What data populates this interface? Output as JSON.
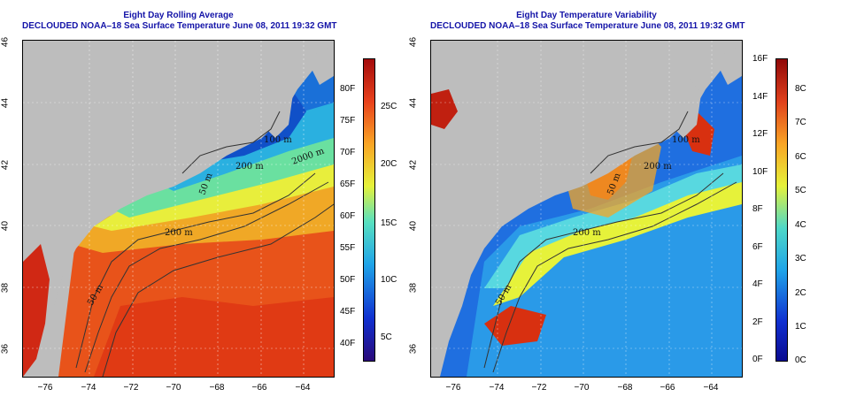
{
  "left_panel": {
    "title_line1": "Eight Day Rolling Average",
    "title_line2": "DECLOUDED NOAA–18 Sea Surface Temperature June 08, 2011 19:32 GMT",
    "colorbar_fahrenheit": [
      "80F",
      "75F",
      "70F",
      "65F",
      "60F",
      "55F",
      "50F",
      "45F",
      "40F"
    ],
    "colorbar_celsius": [
      "25C",
      "20C",
      "15C",
      "10C",
      "5C"
    ],
    "colors": [
      "#2a0a7a",
      "#1030d0",
      "#1fa4e8",
      "#58e0c0",
      "#e6f23a",
      "#f9a425",
      "#e8411c",
      "#a40c0c"
    ]
  },
  "right_panel": {
    "title_line1": "Eight Day Temperature Variability",
    "title_line2": "DECLOUDED NOAA–18 Sea Surface Temperature June 08, 2011 19:32 GMT",
    "colorbar_fahrenheit": [
      "16F",
      "14F",
      "12F",
      "10F",
      "8F",
      "6F",
      "4F",
      "2F",
      "0F"
    ],
    "colorbar_celsius": [
      "8C",
      "7C",
      "6C",
      "5C",
      "4C",
      "3C",
      "2C",
      "1C",
      "0C"
    ],
    "colors": [
      "#0a0a90",
      "#1030d0",
      "#1fa4e8",
      "#4ed8c8",
      "#e6f23a",
      "#f9a425",
      "#e0401c",
      "#900808"
    ]
  },
  "axes": {
    "latitude_ticks": [
      "46",
      "44",
      "42",
      "40",
      "38",
      "36"
    ],
    "longitude_ticks": [
      "−76",
      "−74",
      "−72",
      "−70",
      "−68",
      "−66",
      "−64"
    ]
  },
  "contour_labels": {
    "left": [
      "50 m",
      "200 m",
      "100 m",
      "200 m",
      "50 m",
      "2000 m"
    ],
    "right": [
      "50 m",
      "200 m",
      "100 m",
      "200 m",
      "50 m"
    ]
  }
}
